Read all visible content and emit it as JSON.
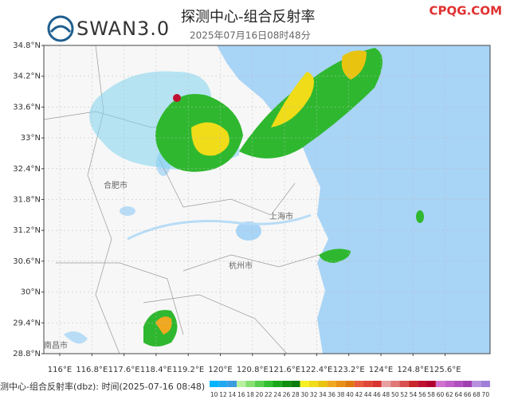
{
  "header": {
    "logo": "SWAN3.0",
    "title": "探测中心-组合反射率",
    "subtitle": "2025年07月16日08时48分",
    "watermark": "CPQG.COM"
  },
  "map": {
    "lat_labels": [
      "34.8°N",
      "34.2°N",
      "33.6°N",
      "33°N",
      "32.4°N",
      "31.8°N",
      "31.2°N",
      "30.6°N",
      "30°N",
      "29.4°N",
      "28.8°N"
    ],
    "lon_labels": [
      "116°E",
      "116.8°E",
      "117.6°E",
      "118.4°E",
      "119.2°E",
      "120°E",
      "120.8°E",
      "121.6°E",
      "122.4°E",
      "123.2°E",
      "124°E",
      "124.8°E",
      "125.6°E"
    ],
    "cities": [
      "合肥市",
      "上海市",
      "杭州市",
      "南昌市"
    ]
  },
  "footer": {
    "caption": "测中心-组合反射率(dbz): 时间(2025-07-16 08:48)"
  },
  "legend": {
    "levels": [
      10,
      12,
      14,
      16,
      18,
      20,
      22,
      24,
      26,
      28,
      30,
      32,
      34,
      36,
      38,
      40,
      42,
      44,
      46,
      48,
      50,
      52,
      54,
      56,
      58,
      60,
      62,
      64,
      66,
      68,
      70
    ],
    "colors": [
      "#00b4ff",
      "#20a8f0",
      "#3c9ce0",
      "#b8f0a0",
      "#88e070",
      "#58d050",
      "#30c030",
      "#18a818",
      "#109010",
      "#0c7c0c",
      "#f8f020",
      "#f0dc18",
      "#e8c410",
      "#f0a820",
      "#e89018",
      "#e07810",
      "#e85c40",
      "#e04838",
      "#d83430",
      "#e8a0a0",
      "#e07878",
      "#d85050",
      "#c82828",
      "#c01030",
      "#b00030",
      "#d070d0",
      "#c060c8",
      "#b050c0",
      "#a040b0",
      "#b890e0",
      "#a080d8"
    ]
  }
}
